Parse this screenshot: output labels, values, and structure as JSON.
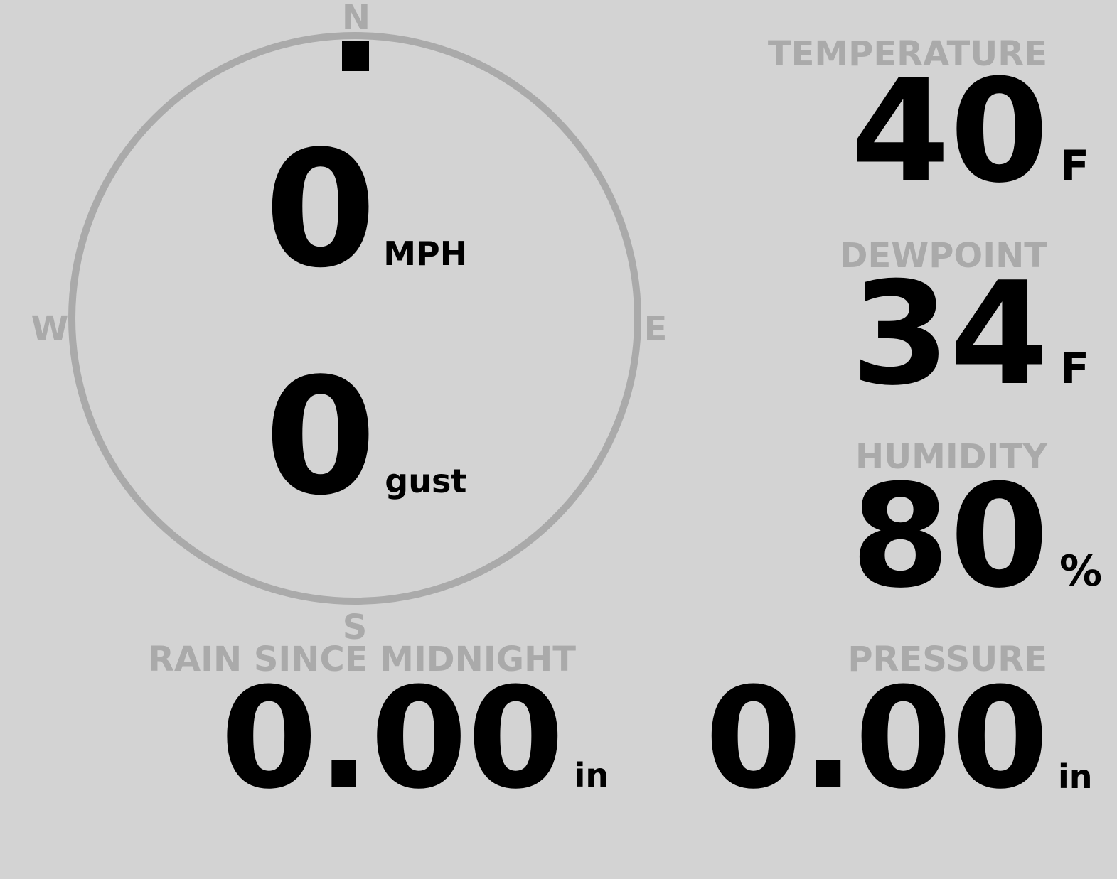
{
  "colors": {
    "background": "#d3d3d3",
    "label": "#aaaaaa",
    "value": "#000000",
    "compass_ring": "#aaaaaa",
    "needle": "#000000"
  },
  "wind": {
    "compass": {
      "north": "N",
      "east": "E",
      "south": "S",
      "west": "W"
    },
    "direction_degrees": 0,
    "speed": "0",
    "speed_unit": "MPH",
    "gust": "0",
    "gust_unit": "gust"
  },
  "temperature": {
    "label": "TEMPERATURE",
    "value": "40",
    "unit": "F"
  },
  "dewpoint": {
    "label": "DEWPOINT",
    "value": "34",
    "unit": "F"
  },
  "humidity": {
    "label": "HUMIDITY",
    "value": "80",
    "unit": "%"
  },
  "rain": {
    "label": "RAIN SINCE MIDNIGHT",
    "value": "0.00",
    "unit": "in"
  },
  "pressure": {
    "label": "PRESSURE",
    "value": "0.00",
    "unit": "in"
  }
}
